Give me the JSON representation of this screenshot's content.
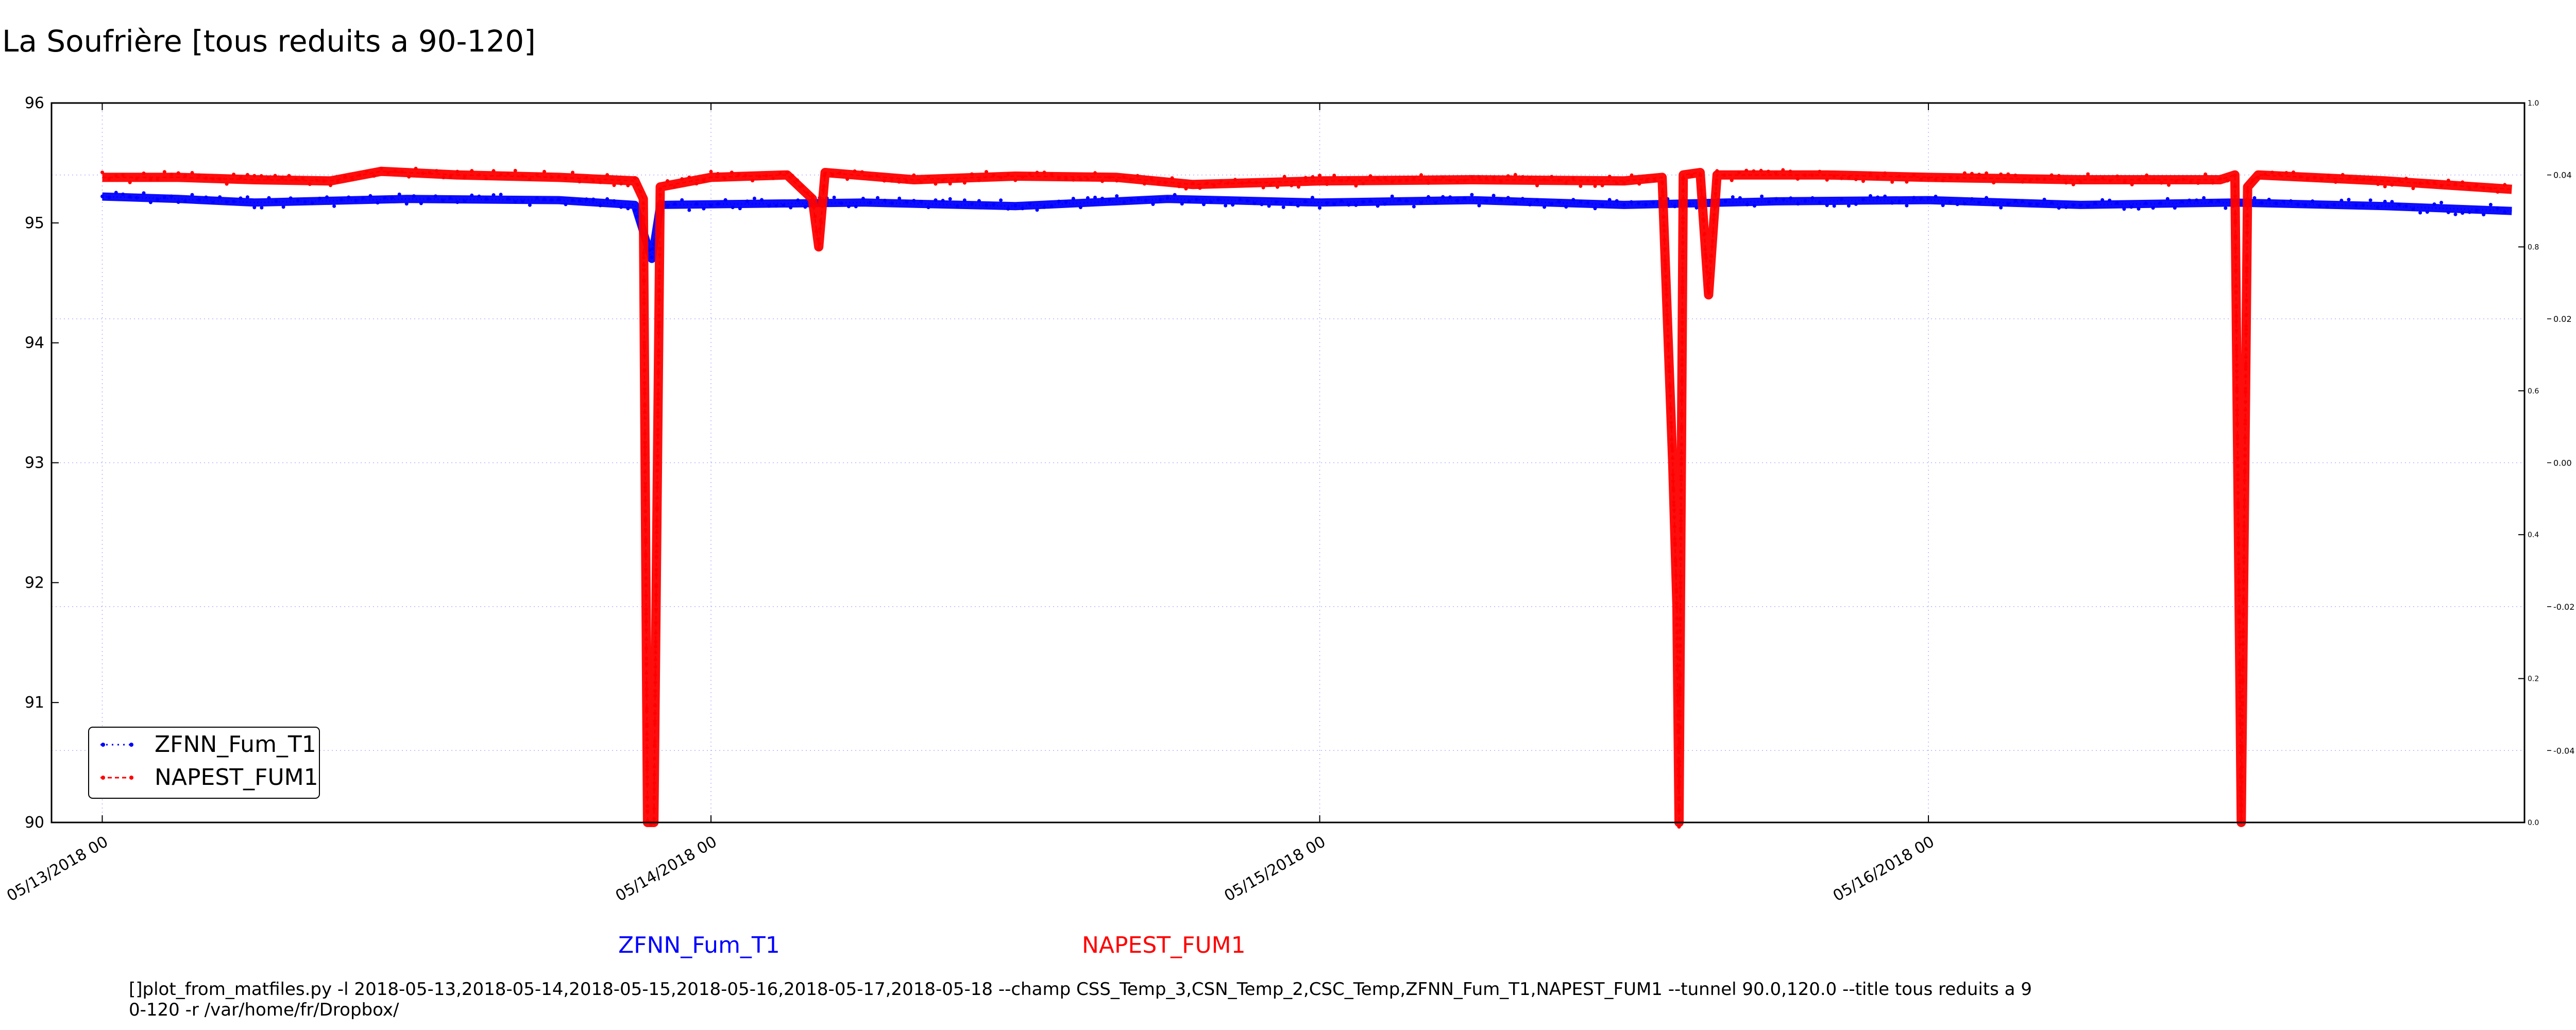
{
  "title": "La Soufrière [tous reduits a 90-120]",
  "command_line": [
    "[]plot_from_matfiles.py -l 2018-05-13,2018-05-14,2018-05-15,2018-05-16,2018-05-17,2018-05-18 --champ CSS_Temp_3,CSN_Temp_2,CSC_Temp,ZFNN_Fum_T1,NAPEST_FUM1 --tunnel 90.0,120.0 --title tous reduits a 9",
    "0-120 -r /var/home/fr/Dropbox/"
  ],
  "series_captions": [
    "ZFNN_Fum_T1",
    "NAPEST_FUM1"
  ],
  "colors": {
    "blue": "#0000ff",
    "red": "#ff0000",
    "grid": "#b0b0ff"
  },
  "chart_data": {
    "type": "line",
    "title": "La Soufrière [tous reduits a 90-120]",
    "xlabel": "",
    "ylabel": "",
    "x_ticks": [
      "05/13/2018 00",
      "05/14/2018 00",
      "05/15/2018 00",
      "05/16/2018 00"
    ],
    "xlim": [
      "2018-05-12 22:00",
      "2018-05-16 23:30"
    ],
    "ylim": [
      90,
      96
    ],
    "y_ticks": [
      "90",
      "91",
      "92",
      "93",
      "94",
      "95",
      "96"
    ],
    "right_axis_outer_ticks": [
      "0.0",
      "0.2",
      "0.4",
      "0.6",
      "0.8",
      "1.0"
    ],
    "right_axis_inner_ticks": [
      "0.04",
      "0.02",
      "0.00",
      "-0.02",
      "-0.04"
    ],
    "grid": true,
    "legend_position": "lower-left",
    "series": [
      {
        "name": "ZFNN_Fum_T1",
        "color": "#0000ff",
        "style": "dotted markers",
        "points": [
          [
            "2018-05-13 00:00",
            95.22
          ],
          [
            "2018-05-13 03:00",
            95.2
          ],
          [
            "2018-05-13 06:00",
            95.17
          ],
          [
            "2018-05-13 12:00",
            95.2
          ],
          [
            "2018-05-13 18:00",
            95.19
          ],
          [
            "2018-05-13 21:00",
            95.15
          ],
          [
            "2018-05-13 21:40",
            94.7
          ],
          [
            "2018-05-13 22:00",
            95.15
          ],
          [
            "2018-05-14 06:00",
            95.17
          ],
          [
            "2018-05-14 12:00",
            95.14
          ],
          [
            "2018-05-14 18:00",
            95.2
          ],
          [
            "2018-05-15 00:00",
            95.17
          ],
          [
            "2018-05-15 06:00",
            95.19
          ],
          [
            "2018-05-15 12:00",
            95.15
          ],
          [
            "2018-05-15 18:00",
            95.18
          ],
          [
            "2018-05-16 00:00",
            95.19
          ],
          [
            "2018-05-16 06:00",
            95.15
          ],
          [
            "2018-05-16 12:00",
            95.17
          ],
          [
            "2018-05-16 18:00",
            95.14
          ],
          [
            "2018-05-16 23:00",
            95.1
          ]
        ]
      },
      {
        "name": "NAPEST_FUM1",
        "color": "#ff0000",
        "style": "dashed with markers",
        "points": [
          [
            "2018-05-13 00:00",
            95.38
          ],
          [
            "2018-05-13 03:00",
            95.38
          ],
          [
            "2018-05-13 06:00",
            95.36
          ],
          [
            "2018-05-13 09:00",
            95.35
          ],
          [
            "2018-05-13 11:00",
            95.43
          ],
          [
            "2018-05-13 14:00",
            95.4
          ],
          [
            "2018-05-13 18:00",
            95.38
          ],
          [
            "2018-05-13 21:00",
            95.35
          ],
          [
            "2018-05-13 21:20",
            95.2
          ],
          [
            "2018-05-13 21:30",
            90.0
          ],
          [
            "2018-05-13 21:45",
            90.0
          ],
          [
            "2018-05-13 22:00",
            95.3
          ],
          [
            "2018-05-14 00:00",
            95.38
          ],
          [
            "2018-05-14 03:00",
            95.4
          ],
          [
            "2018-05-14 04:00",
            95.2
          ],
          [
            "2018-05-14 04:15",
            94.8
          ],
          [
            "2018-05-14 04:30",
            95.42
          ],
          [
            "2018-05-14 08:00",
            95.36
          ],
          [
            "2018-05-14 12:00",
            95.39
          ],
          [
            "2018-05-14 16:00",
            95.38
          ],
          [
            "2018-05-14 19:00",
            95.32
          ],
          [
            "2018-05-15 00:00",
            95.35
          ],
          [
            "2018-05-15 06:00",
            95.36
          ],
          [
            "2018-05-15 12:00",
            95.35
          ],
          [
            "2018-05-15 13:30",
            95.38
          ],
          [
            "2018-05-15 13:55",
            93.0
          ],
          [
            "2018-05-15 14:05",
            91.8
          ],
          [
            "2018-05-15 14:10",
            90.0
          ],
          [
            "2018-05-15 14:20",
            95.4
          ],
          [
            "2018-05-15 15:00",
            95.42
          ],
          [
            "2018-05-15 15:20",
            94.4
          ],
          [
            "2018-05-15 15:40",
            95.4
          ],
          [
            "2018-05-15 20:00",
            95.4
          ],
          [
            "2018-05-16 00:00",
            95.38
          ],
          [
            "2018-05-16 06:00",
            95.36
          ],
          [
            "2018-05-16 11:30",
            95.36
          ],
          [
            "2018-05-16 12:05",
            95.4
          ],
          [
            "2018-05-16 12:20",
            90.0
          ],
          [
            "2018-05-16 12:35",
            95.3
          ],
          [
            "2018-05-16 13:00",
            95.4
          ],
          [
            "2018-05-16 18:00",
            95.35
          ],
          [
            "2018-05-16 23:00",
            95.28
          ]
        ]
      }
    ]
  }
}
